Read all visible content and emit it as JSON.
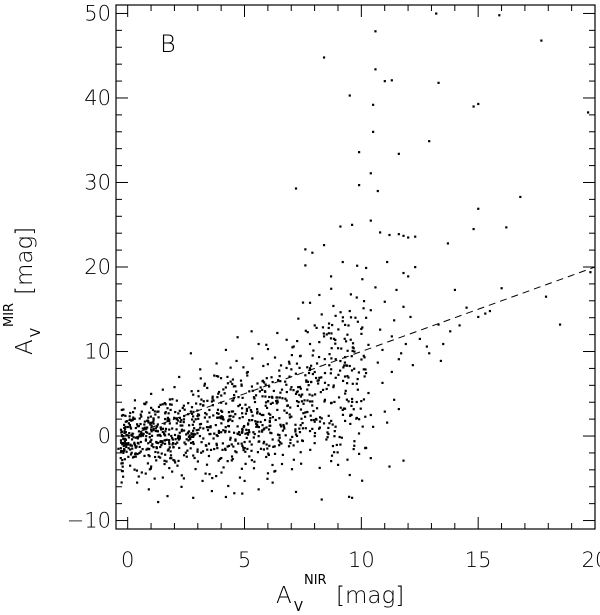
{
  "panel_label": "B",
  "axes": {
    "x_label_main": "A",
    "x_label_sub": "V",
    "x_label_sup": "NIR",
    "x_label_unit": "[mag]",
    "y_label_main": "A",
    "y_label_sub": "V",
    "y_label_sup": "MIR",
    "y_label_unit": "[mag]"
  },
  "chart_data": {
    "type": "scatter",
    "title": "",
    "xlim": [
      -0.5,
      20
    ],
    "ylim": [
      -11,
      51
    ],
    "x_ticks": [
      0,
      5,
      10,
      15,
      20
    ],
    "x_tick_labels": [
      "0",
      "5",
      "10",
      "15",
      "20"
    ],
    "y_ticks": [
      -10,
      0,
      10,
      20,
      30,
      40,
      50
    ],
    "y_tick_labels": [
      "−10",
      "0",
      "10",
      "20",
      "30",
      "40",
      "50"
    ],
    "grid": false,
    "legend": "none",
    "series": [
      {
        "points": [
          [
            8.4,
            44.8
          ],
          [
            10.6,
            47.9
          ],
          [
            10.6,
            43.4
          ],
          [
            11.0,
            42.0
          ],
          [
            11.3,
            42.1
          ],
          [
            10.5,
            39.2
          ],
          [
            9.5,
            40.3
          ],
          [
            13.3,
            41.8
          ],
          [
            15.0,
            39.3
          ],
          [
            14.8,
            39.0
          ],
          [
            17.7,
            46.8
          ],
          [
            15.9,
            49.8
          ],
          [
            19.7,
            38.3
          ],
          [
            13.2,
            50.0
          ],
          [
            12.9,
            34.9
          ],
          [
            10.5,
            36.0
          ],
          [
            11.6,
            33.4
          ],
          [
            9.9,
            33.6
          ],
          [
            10.4,
            31.1
          ],
          [
            9.9,
            29.7
          ],
          [
            7.2,
            29.3
          ],
          [
            10.7,
            29.0
          ],
          [
            16.8,
            28.3
          ],
          [
            15.0,
            26.9
          ],
          [
            14.8,
            24.5
          ],
          [
            16.2,
            24.7
          ],
          [
            13.7,
            22.8
          ],
          [
            12.3,
            20.0
          ],
          [
            14.0,
            17.3
          ],
          [
            16.0,
            17.5
          ],
          [
            14.5,
            15.2
          ],
          [
            15.0,
            14.1
          ],
          [
            15.3,
            14.5
          ],
          [
            13.3,
            13.2
          ],
          [
            12.8,
            10.6
          ],
          [
            13.5,
            10.9
          ],
          [
            12.9,
            9.8
          ],
          [
            11.7,
            9.8
          ],
          [
            13.4,
            8.9
          ],
          [
            18.5,
            13.2
          ],
          [
            7.6,
            22.1
          ],
          [
            7.9,
            21.7
          ],
          [
            8.4,
            22.6
          ],
          [
            9.1,
            24.8
          ],
          [
            9.6,
            25.0
          ],
          [
            10.4,
            25.5
          ],
          [
            10.8,
            24.1
          ],
          [
            11.2,
            23.8
          ],
          [
            11.6,
            23.9
          ],
          [
            11.8,
            23.7
          ],
          [
            12.0,
            23.5
          ],
          [
            7.6,
            20.2
          ],
          [
            8.7,
            18.9
          ],
          [
            9.2,
            20.6
          ],
          [
            10.2,
            19.9
          ],
          [
            11.1,
            20.6
          ],
          [
            11.8,
            19.3
          ],
          [
            12.0,
            18.9
          ],
          [
            11.5,
            17.3
          ],
          [
            10.6,
            17.6
          ],
          [
            9.8,
            16.4
          ],
          [
            8.2,
            16.7
          ],
          [
            7.5,
            15.8
          ],
          [
            8.8,
            15.4
          ],
          [
            9.5,
            14.8
          ],
          [
            10.4,
            14.9
          ],
          [
            11.0,
            15.9
          ],
          [
            11.8,
            15.3
          ],
          [
            7.3,
            13.9
          ],
          [
            8.0,
            13.1
          ],
          [
            8.6,
            12.8
          ],
          [
            9.2,
            13.6
          ],
          [
            10.0,
            12.1
          ],
          [
            10.8,
            12.6
          ],
          [
            11.3,
            11.8
          ],
          [
            6.4,
            12.2
          ],
          [
            6.8,
            11.4
          ],
          [
            7.1,
            10.6
          ],
          [
            7.8,
            10.9
          ],
          [
            8.4,
            11.8
          ],
          [
            9.0,
            10.4
          ],
          [
            9.7,
            10.0
          ],
          [
            10.3,
            10.8
          ],
          [
            10.9,
            10.2
          ],
          [
            11.6,
            9.1
          ],
          [
            5.3,
            12.4
          ],
          [
            5.6,
            10.9
          ],
          [
            6.0,
            10.3
          ],
          [
            4.7,
            11.7
          ],
          [
            2.7,
            9.8
          ],
          [
            4.2,
            10.2
          ],
          [
            6.3,
            9.3
          ],
          [
            6.9,
            8.8
          ],
          [
            7.4,
            9.5
          ],
          [
            8.1,
            8.6
          ],
          [
            8.9,
            9.1
          ],
          [
            9.5,
            8.3
          ],
          [
            10.1,
            7.9
          ],
          [
            10.7,
            8.7
          ],
          [
            11.3,
            7.6
          ],
          [
            9.8,
            6.2
          ],
          [
            10.3,
            5.1
          ],
          [
            10.9,
            6.3
          ],
          [
            11.4,
            4.3
          ],
          [
            9.6,
            4.4
          ],
          [
            8.8,
            5.8
          ],
          [
            8.2,
            6.9
          ],
          [
            7.6,
            7.2
          ],
          [
            7.0,
            7.9
          ],
          [
            6.5,
            7.1
          ],
          [
            5.8,
            8.3
          ],
          [
            5.1,
            7.5
          ],
          [
            4.4,
            8.1
          ],
          [
            3.8,
            8.6
          ],
          [
            3.1,
            7.9
          ],
          [
            2.2,
            7.0
          ],
          [
            1.5,
            5.5
          ],
          [
            1.0,
            5.0
          ],
          [
            10.4,
            2.5
          ],
          [
            11.0,
            2.9
          ],
          [
            11.6,
            3.2
          ],
          [
            9.9,
            2.0
          ],
          [
            10.5,
            1.1
          ],
          [
            11.1,
            1.6
          ],
          [
            9.3,
            1.8
          ],
          [
            8.6,
            2.4
          ],
          [
            8.1,
            3.3
          ],
          [
            7.8,
            4.1
          ],
          [
            7.2,
            5.0
          ],
          [
            6.6,
            5.5
          ],
          [
            5.9,
            6.1
          ],
          [
            5.2,
            5.3
          ],
          [
            4.6,
            5.9
          ],
          [
            4.0,
            4.8
          ],
          [
            3.4,
            5.7
          ],
          [
            2.8,
            4.9
          ],
          [
            2.1,
            4.2
          ],
          [
            1.4,
            3.7
          ],
          [
            0.8,
            4.0
          ],
          [
            0.3,
            3.3
          ],
          [
            9.7,
            -0.6
          ],
          [
            9.9,
            -2.1
          ],
          [
            10.2,
            -1.4
          ],
          [
            9.1,
            -1.0
          ],
          [
            8.5,
            -0.4
          ],
          [
            9.0,
            -3.4
          ],
          [
            9.5,
            -4.6
          ],
          [
            10.4,
            -2.6
          ],
          [
            11.2,
            -3.6
          ],
          [
            11.8,
            -2.9
          ],
          [
            8.3,
            -7.5
          ],
          [
            9.6,
            -7.3
          ],
          [
            7.2,
            -6.6
          ],
          [
            6.2,
            -5.5
          ],
          [
            5.6,
            -6.3
          ],
          [
            4.9,
            -6.8
          ],
          [
            4.3,
            -5.9
          ],
          [
            3.6,
            -6.5
          ],
          [
            2.8,
            -7.3
          ],
          [
            2.3,
            -6.0
          ],
          [
            1.7,
            -7.1
          ],
          [
            1.3,
            -7.8
          ],
          [
            0.9,
            -6.3
          ],
          [
            0.4,
            -5.5
          ],
          [
            -0.2,
            -4.8
          ],
          [
            6.6,
            -3.3
          ],
          [
            6.0,
            -4.4
          ],
          [
            5.4,
            -3.8
          ],
          [
            4.8,
            -4.9
          ],
          [
            4.1,
            -3.7
          ],
          [
            3.5,
            -4.5
          ],
          [
            2.9,
            -3.9
          ],
          [
            2.4,
            -5.0
          ],
          [
            1.9,
            -4.2
          ],
          [
            1.5,
            -4.9
          ],
          [
            1.0,
            -3.6
          ],
          [
            0.6,
            -4.3
          ],
          [
            0.1,
            -3.5
          ],
          [
            -0.3,
            -2.6
          ],
          [
            -0.4,
            -1.5
          ],
          [
            7.4,
            -1.9
          ],
          [
            6.9,
            -1.2
          ],
          [
            6.3,
            -2.1
          ],
          [
            5.7,
            -1.5
          ],
          [
            5.2,
            -2.4
          ],
          [
            4.6,
            -1.8
          ],
          [
            4.0,
            -2.6
          ],
          [
            3.4,
            -1.6
          ],
          [
            2.8,
            -2.3
          ],
          [
            2.2,
            -1.4
          ],
          [
            1.6,
            -2.2
          ],
          [
            1.1,
            -1.3
          ],
          [
            0.5,
            -2.0
          ],
          [
            0.0,
            -1.0
          ],
          [
            -0.2,
            0.0
          ],
          [
            7.8,
            0.6
          ],
          [
            7.2,
            0.2
          ],
          [
            6.7,
            0.9
          ],
          [
            6.1,
            0.4
          ],
          [
            5.5,
            1.1
          ],
          [
            4.9,
            0.5
          ],
          [
            4.3,
            1.2
          ],
          [
            3.7,
            0.3
          ],
          [
            3.1,
            1.0
          ],
          [
            2.5,
            0.2
          ],
          [
            1.9,
            0.9
          ],
          [
            1.3,
            0.1
          ],
          [
            0.7,
            0.8
          ],
          [
            0.2,
            0.3
          ],
          [
            8.3,
            2.1
          ],
          [
            7.6,
            2.8
          ],
          [
            7.0,
            2.3
          ],
          [
            6.4,
            3.1
          ],
          [
            5.8,
            2.5
          ],
          [
            5.2,
            3.4
          ],
          [
            4.6,
            2.6
          ],
          [
            4.0,
            3.0
          ],
          [
            3.3,
            2.2
          ],
          [
            2.7,
            2.9
          ],
          [
            2.1,
            2.0
          ],
          [
            1.6,
            2.7
          ],
          [
            1.1,
            2.1
          ],
          [
            0.6,
            2.9
          ],
          [
            0.2,
            1.9
          ],
          [
            -0.1,
            2.4
          ],
          [
            1.8,
            1.5
          ],
          [
            2.6,
            -0.5
          ],
          [
            3.0,
            -3.0
          ],
          [
            3.8,
            -0.9
          ],
          [
            4.4,
            -0.2
          ],
          [
            5.0,
            -0.7
          ],
          [
            5.6,
            0.0
          ],
          [
            6.2,
            -0.4
          ],
          [
            6.8,
            1.5
          ],
          [
            7.4,
            1.3
          ],
          [
            8.0,
            1.7
          ],
          [
            8.7,
            3.9
          ],
          [
            9.2,
            3.1
          ],
          [
            1.2,
            0.6
          ],
          [
            1.4,
            -0.7
          ],
          [
            2.0,
            -2.9
          ],
          [
            2.4,
            3.6
          ],
          [
            3.2,
            -5.3
          ],
          [
            4.2,
            -7.2
          ],
          [
            5.0,
            -5.3
          ],
          [
            0.8,
            -1.6
          ],
          [
            0.4,
            1.4
          ],
          [
            1.7,
            3.3
          ],
          [
            3.6,
            4.1
          ],
          [
            4.8,
            3.7
          ],
          [
            6.4,
            4.2
          ],
          [
            7.9,
            4.8
          ],
          [
            8.9,
            6.9
          ],
          [
            9.4,
            7.1
          ],
          [
            10.1,
            9.5
          ],
          [
            6.2,
            6.4
          ],
          [
            5.4,
            4.6
          ],
          [
            4.5,
            6.7
          ],
          [
            3.3,
            6.2
          ],
          [
            2.0,
            5.8
          ],
          [
            12.3,
            23.6
          ],
          [
            12.1,
            14.1
          ],
          [
            12.5,
            11.5
          ],
          [
            11.4,
            13.7
          ],
          [
            10.2,
            14.0
          ],
          [
            9.4,
            12.0
          ],
          [
            8.3,
            14.4
          ],
          [
            7.7,
            12.3
          ],
          [
            11.9,
            10.9
          ],
          [
            12.2,
            8.4
          ],
          [
            14.2,
            13.1
          ],
          [
            15.5,
            14.8
          ],
          [
            13.8,
            12.4
          ],
          [
            19.8,
            19.4
          ],
          [
            17.9,
            16.5
          ]
        ]
      }
    ],
    "reference_line": {
      "style": "dashed",
      "x": [
        0,
        20
      ],
      "y": [
        0,
        20
      ]
    }
  }
}
